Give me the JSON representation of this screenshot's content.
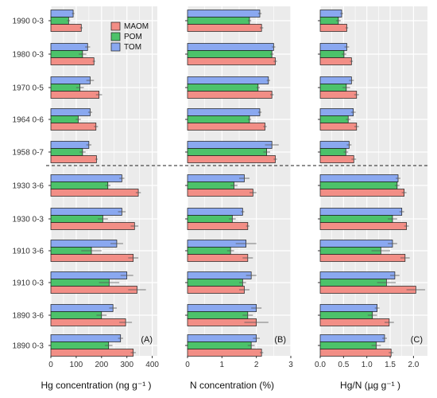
{
  "colors": {
    "MAOM": "#F28E86",
    "POM": "#4CC26A",
    "TOM": "#8AA8F0",
    "panel_bg": "#EBEBEB",
    "grid": "#FFFFFF"
  },
  "chart_data": {
    "type": "bar",
    "orientation": "horizontal",
    "categories": [
      "1990 0-3",
      "1980 0-3",
      "1970 0-5",
      "1964 0-6",
      "1958 0-7",
      "1930 3-6",
      "1930 0-3",
      "1910 3-6",
      "1910 0-3",
      "1890 3-6",
      "1890 0-3"
    ],
    "legend": {
      "entries": [
        "MAOM",
        "POM",
        "TOM"
      ],
      "placement": "top-right of panel A"
    },
    "separator_after_category": "1958 0-7",
    "panels": [
      {
        "id": "A",
        "label": "(A)",
        "xlim": [
          0,
          420
        ],
        "xticks": [
          0,
          100,
          200,
          300,
          400
        ],
        "xtick_labels": [
          "0",
          "100",
          "200",
          "300",
          "400"
        ],
        "series": [
          {
            "name": "MAOM",
            "values": [
              120,
              170,
              190,
              178,
              180,
              345,
              330,
              325,
              340,
              295,
              325
            ],
            "errors": [
              5,
              5,
              12,
              8,
              5,
              10,
              15,
              20,
              35,
              25,
              10
            ]
          },
          {
            "name": "POM",
            "values": [
              70,
              125,
              115,
              108,
              125,
              225,
              205,
              160,
              230,
              200,
              228
            ],
            "errors": [
              6,
              15,
              15,
              10,
              12,
              10,
              20,
              40,
              40,
              20,
              15
            ]
          },
          {
            "name": "TOM",
            "values": [
              88,
              145,
              155,
              155,
              150,
              280,
              280,
              260,
              300,
              245,
              275
            ],
            "errors": [
              5,
              10,
              15,
              8,
              10,
              10,
              15,
              25,
              25,
              15,
              10
            ]
          }
        ]
      },
      {
        "id": "B",
        "label": "(B)",
        "xlim": [
          0,
          3
        ],
        "xticks": [
          0,
          1,
          2,
          3
        ],
        "xtick_labels": [
          "0",
          "1",
          "2",
          "3"
        ],
        "series": [
          {
            "name": "MAOM",
            "values": [
              2.15,
              2.55,
              2.45,
              2.25,
              2.55,
              1.9,
              1.75,
              1.75,
              1.65,
              2.0,
              2.15
            ],
            "errors": [
              0.05,
              0.05,
              0.05,
              0.05,
              0.05,
              0.1,
              0.05,
              0.15,
              0.15,
              0.35,
              0.05
            ]
          },
          {
            "name": "POM",
            "values": [
              1.8,
              2.45,
              2.05,
              1.8,
              2.3,
              1.35,
              1.3,
              1.25,
              1.6,
              1.75,
              1.85
            ],
            "errors": [
              0.05,
              0.05,
              0.05,
              0.05,
              0.1,
              0.1,
              0.1,
              0.1,
              0.1,
              0.15,
              0.1
            ]
          },
          {
            "name": "TOM",
            "values": [
              2.1,
              2.5,
              2.35,
              2.1,
              2.45,
              1.65,
              1.6,
              1.7,
              1.85,
              2.0,
              2.0
            ],
            "errors": [
              0.05,
              0.05,
              0.05,
              0.05,
              0.2,
              0.15,
              0.05,
              0.3,
              0.15,
              0.15,
              0.1
            ]
          }
        ]
      },
      {
        "id": "C",
        "label": "(C)",
        "xlim": [
          0,
          2.3
        ],
        "xticks": [
          0,
          0.5,
          1.0,
          1.5,
          2.0
        ],
        "xtick_labels": [
          "0.0",
          "0.5",
          "1.0",
          "1.5",
          "2.0"
        ],
        "series": [
          {
            "name": "MAOM",
            "values": [
              0.57,
              0.67,
              0.78,
              0.78,
              0.72,
              1.8,
              1.85,
              1.82,
              2.05,
              1.48,
              1.52
            ],
            "errors": [
              0.03,
              0.03,
              0.05,
              0.05,
              0.05,
              0.05,
              0.05,
              0.1,
              0.2,
              0.1,
              0.05
            ]
          },
          {
            "name": "POM",
            "values": [
              0.39,
              0.51,
              0.56,
              0.6,
              0.55,
              1.65,
              1.55,
              1.3,
              1.42,
              1.12,
              1.2
            ],
            "errors": [
              0.05,
              0.05,
              0.08,
              0.05,
              0.05,
              0.05,
              0.1,
              0.2,
              0.2,
              0.1,
              0.1
            ]
          },
          {
            "name": "TOM",
            "values": [
              0.46,
              0.57,
              0.67,
              0.71,
              0.62,
              1.67,
              1.75,
              1.55,
              1.6,
              1.22,
              1.38
            ],
            "errors": [
              0.03,
              0.05,
              0.05,
              0.05,
              0.05,
              0.05,
              0.05,
              0.1,
              0.1,
              0.05,
              0.05
            ]
          }
        ]
      }
    ],
    "x_titles": [
      "Hg concentration (ng g⁻¹ )",
      "N concentration (%)",
      "Hg/N (µg g⁻¹ )"
    ]
  }
}
